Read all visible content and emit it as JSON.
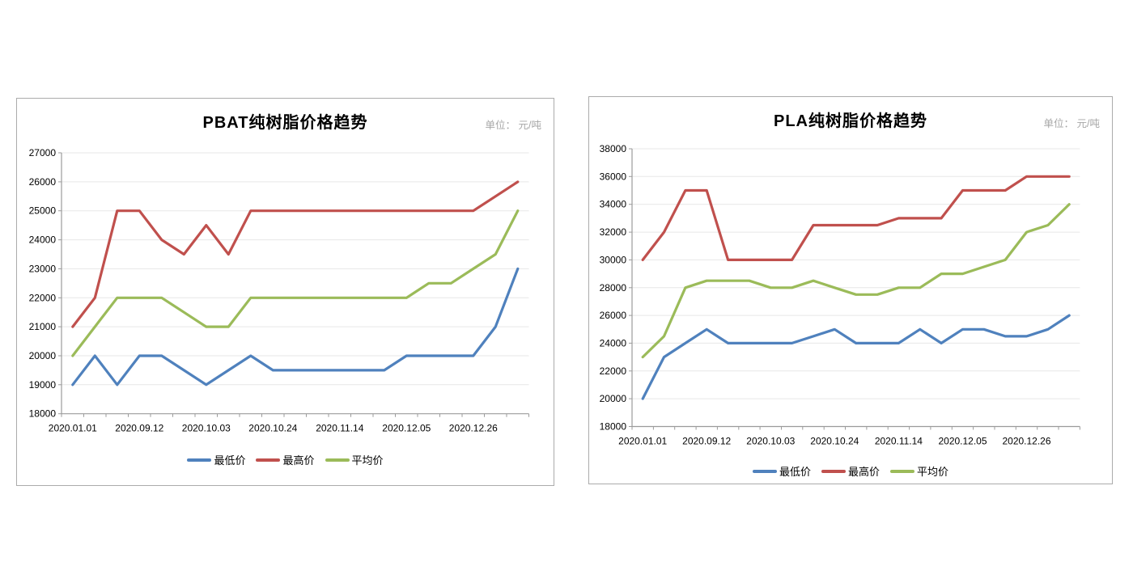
{
  "unit_note": "单位： 元/吨",
  "chart_data": [
    {
      "type": "line",
      "title": "PBAT纯树脂价格趋势",
      "unit_label": "单位： 元/吨",
      "n_points": 21,
      "x_tick_labels": [
        {
          "index": 0,
          "label": "2020.01.01"
        },
        {
          "index": 3,
          "label": "2020.09.12"
        },
        {
          "index": 6,
          "label": "2020.10.03"
        },
        {
          "index": 9,
          "label": "2020.10.24"
        },
        {
          "index": 12,
          "label": "2020.11.14"
        },
        {
          "index": 15,
          "label": "2020.12.05"
        },
        {
          "index": 18,
          "label": "2020.12.26"
        }
      ],
      "ylim": [
        18000,
        27000
      ],
      "y_tick_step": 1000,
      "grid": "horizontal",
      "legend_position": "bottom",
      "series": [
        {
          "name": "最低价",
          "color": "#4F81BD",
          "values": [
            19000,
            20000,
            19000,
            20000,
            20000,
            19500,
            19000,
            19500,
            20000,
            19500,
            19500,
            19500,
            19500,
            19500,
            19500,
            20000,
            20000,
            20000,
            20000,
            21000,
            23000
          ]
        },
        {
          "name": "最高价",
          "color": "#C0504D",
          "values": [
            21000,
            22000,
            25000,
            25000,
            24000,
            23500,
            24500,
            23500,
            25000,
            25000,
            25000,
            25000,
            25000,
            25000,
            25000,
            25000,
            25000,
            25000,
            25000,
            25500,
            26000
          ]
        },
        {
          "name": "平均价",
          "color": "#9BBB59",
          "values": [
            20000,
            21000,
            22000,
            22000,
            22000,
            21500,
            21000,
            21000,
            22000,
            22000,
            22000,
            22000,
            22000,
            22000,
            22000,
            22000,
            22500,
            22500,
            23000,
            23500,
            25000
          ]
        }
      ]
    },
    {
      "type": "line",
      "title": "PLA纯树脂价格趋势",
      "unit_label": "单位： 元/吨",
      "n_points": 21,
      "x_tick_labels": [
        {
          "index": 0,
          "label": "2020.01.01"
        },
        {
          "index": 3,
          "label": "2020.09.12"
        },
        {
          "index": 6,
          "label": "2020.10.03"
        },
        {
          "index": 9,
          "label": "2020.10.24"
        },
        {
          "index": 12,
          "label": "2020.11.14"
        },
        {
          "index": 15,
          "label": "2020.12.05"
        },
        {
          "index": 18,
          "label": "2020.12.26"
        }
      ],
      "ylim": [
        18000,
        38000
      ],
      "y_tick_step": 2000,
      "grid": "horizontal",
      "legend_position": "bottom",
      "series": [
        {
          "name": "最低价",
          "color": "#4F81BD",
          "values": [
            20000,
            23000,
            24000,
            25000,
            24000,
            24000,
            24000,
            24000,
            24500,
            25000,
            24000,
            24000,
            24000,
            25000,
            24000,
            25000,
            25000,
            24500,
            24500,
            25000,
            26000
          ]
        },
        {
          "name": "最高价",
          "color": "#C0504D",
          "values": [
            30000,
            32000,
            35000,
            35000,
            30000,
            30000,
            30000,
            30000,
            32500,
            32500,
            32500,
            32500,
            33000,
            33000,
            33000,
            35000,
            35000,
            35000,
            36000,
            36000,
            36000
          ]
        },
        {
          "name": "平均价",
          "color": "#9BBB59",
          "values": [
            23000,
            24500,
            28000,
            28500,
            28500,
            28500,
            28000,
            28000,
            28500,
            28000,
            27500,
            27500,
            28000,
            28000,
            29000,
            29000,
            29500,
            30000,
            32000,
            32500,
            34000
          ]
        }
      ]
    }
  ],
  "colors": {
    "series_low": "#4F81BD",
    "series_high": "#C0504D",
    "series_avg": "#9BBB59",
    "grid": "#e7e7e7",
    "axis": "#9b9b9b",
    "unit_text": "#a6a6a6",
    "panel_border": "#ababab"
  }
}
